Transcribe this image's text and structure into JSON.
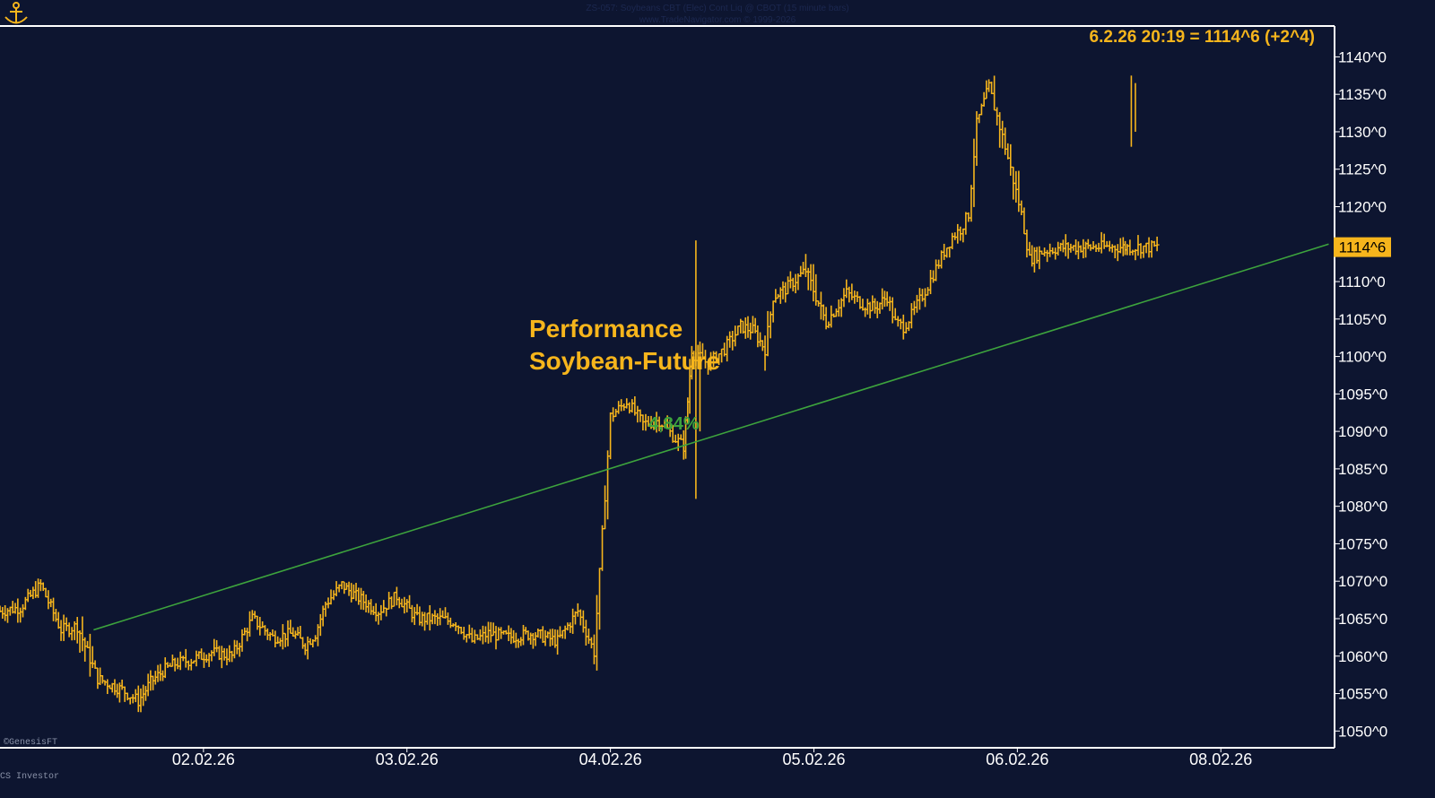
{
  "header": {
    "line1": "ZS-057:  Soybeans CBT (Elec) Cont Liq @ CBOT  (15 minute bars)",
    "line2": "www.TradeNavigator.com © 1999-2026"
  },
  "readout": "6.2.26 20:19 = 1114^6 (+2^4)",
  "last_price_label": "1114^6",
  "footer": {
    "left_copyright": "©GenesisFT",
    "bottom_left": "CS Investor"
  },
  "colors": {
    "background": "#0d1530",
    "bars": "#f6b51c",
    "trendline": "#3da33d",
    "axis_text": "#ffffff",
    "frame": "#ffffff"
  },
  "icons": {
    "logo": "anchor-icon"
  },
  "chart_data": {
    "type": "line",
    "title": "Performance Soybean-Future",
    "annotation_lines": [
      "Performance",
      "Soybean-Future"
    ],
    "performance_label": "4,84%",
    "ylim": [
      1048,
      1144
    ],
    "yticks": [
      {
        "v": 1050,
        "label": "1050^0"
      },
      {
        "v": 1055,
        "label": "1055^0"
      },
      {
        "v": 1060,
        "label": "1060^0"
      },
      {
        "v": 1065,
        "label": "1065^0"
      },
      {
        "v": 1070,
        "label": "1070^0"
      },
      {
        "v": 1075,
        "label": "1075^0"
      },
      {
        "v": 1080,
        "label": "1080^0"
      },
      {
        "v": 1085,
        "label": "1085^0"
      },
      {
        "v": 1090,
        "label": "1090^0"
      },
      {
        "v": 1095,
        "label": "1095^0"
      },
      {
        "v": 1100,
        "label": "1100^0"
      },
      {
        "v": 1105,
        "label": "1105^0"
      },
      {
        "v": 1110,
        "label": "1110^0"
      },
      {
        "v": 1115,
        "label": "1115^0"
      },
      {
        "v": 1120,
        "label": "1120^0"
      },
      {
        "v": 1125,
        "label": "1125^0"
      },
      {
        "v": 1130,
        "label": "1130^0"
      },
      {
        "v": 1135,
        "label": "1135^0"
      },
      {
        "v": 1140,
        "label": "1140^0"
      }
    ],
    "x_range_days": [
      0,
      6.55
    ],
    "xticks": [
      {
        "d": 1,
        "label": "02.02.26"
      },
      {
        "d": 2,
        "label": "03.02.26"
      },
      {
        "d": 3,
        "label": "04.02.26"
      },
      {
        "d": 4,
        "label": "05.02.26"
      },
      {
        "d": 5,
        "label": "06.02.26"
      },
      {
        "d": 6,
        "label": "08.02.26"
      }
    ],
    "series": [
      {
        "type": "bars",
        "x": [
          0.0,
          0.1,
          0.2,
          0.3,
          0.38,
          0.48,
          0.6,
          0.68,
          0.74,
          0.8,
          0.86,
          0.94,
          1.04,
          1.14,
          1.24,
          1.34,
          1.44,
          1.5,
          1.55,
          1.6,
          1.68,
          1.75,
          1.86,
          1.95,
          2.05,
          2.15,
          2.24,
          2.32,
          2.4,
          2.5,
          2.62,
          2.74,
          2.84,
          2.92,
          3.0,
          3.08,
          3.16,
          3.24,
          3.32,
          3.36,
          3.38,
          3.4,
          3.42,
          3.44,
          3.48,
          3.56,
          3.64,
          3.7,
          3.76,
          3.8,
          3.86,
          3.96,
          4.06,
          4.16,
          4.24,
          4.3,
          4.36,
          4.4,
          4.44,
          4.48,
          4.56,
          4.64,
          4.68,
          4.72,
          4.76,
          4.8,
          4.86,
          4.94,
          5.02,
          5.06,
          5.12,
          5.2,
          5.3,
          5.36,
          5.4,
          5.44,
          5.48,
          5.52,
          5.54,
          5.58,
          5.62,
          5.66,
          5.7
        ],
        "values": [
          1066.0,
          1066.5,
          1069.5,
          1063.5,
          1064.0,
          1057.0,
          1055.5,
          1054.0,
          1056.5,
          1058.0,
          1059.0,
          1059.5,
          1060.5,
          1060.0,
          1065.0,
          1062.5,
          1063.0,
          1061.5,
          1063.0,
          1067.0,
          1069.5,
          1068.0,
          1066.0,
          1068.0,
          1065.0,
          1065.0,
          1064.5,
          1062.0,
          1063.0,
          1062.5,
          1063.0,
          1062.0,
          1066.0,
          1060.5,
          1092.0,
          1094.0,
          1091.0,
          1091.5,
          1089.0,
          1088.0,
          1094.0,
          1101.0,
          1099.5,
          1100.0,
          1099.0,
          1101.0,
          1104.0,
          1103.5,
          1101.0,
          1108.0,
          1109.0,
          1111.5,
          1104.5,
          1108.5,
          1107.0,
          1106.5,
          1108.0,
          1104.5,
          1104.0,
          1105.5,
          1109.5,
          1114.0,
          1116.0,
          1117.0,
          1119.0,
          1131.0,
          1136.0,
          1128.0,
          1119.0,
          1113.0,
          1114.0,
          1114.5,
          1114.6,
          1114.6,
          1114.6,
          1114.6,
          1114.6,
          1114.6,
          1114.6,
          1114.6,
          1114.6,
          1114.6,
          1114.6
        ]
      },
      {
        "name": "4,84%",
        "type": "trendline",
        "x": [
          0.46,
          6.53
        ],
        "values": [
          1063.5,
          1115.0
        ]
      }
    ]
  }
}
